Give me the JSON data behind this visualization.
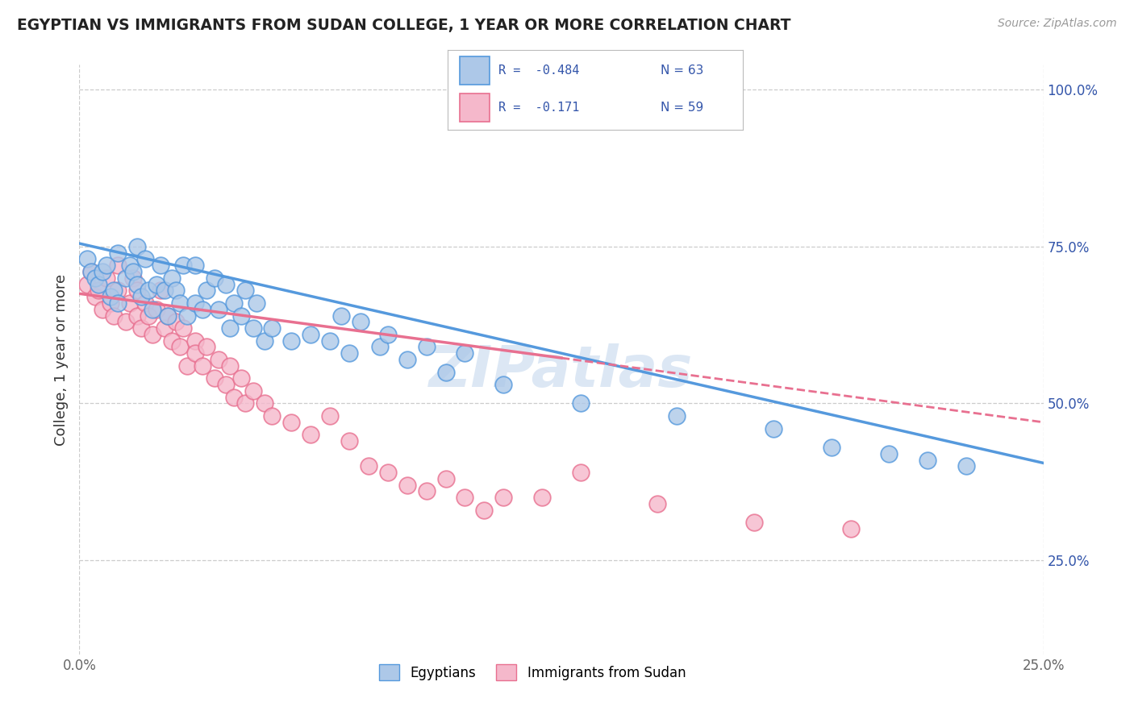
{
  "title": "EGYPTIAN VS IMMIGRANTS FROM SUDAN COLLEGE, 1 YEAR OR MORE CORRELATION CHART",
  "source_text": "Source: ZipAtlas.com",
  "ylabel": "College, 1 year or more",
  "xlim": [
    0.0,
    0.25
  ],
  "ylim": [
    0.1,
    1.04
  ],
  "x_ticks": [
    0.0,
    0.05,
    0.1,
    0.15,
    0.2,
    0.25
  ],
  "x_tick_labels": [
    "0.0%",
    "",
    "",
    "",
    "",
    "25.0%"
  ],
  "y_ticks": [
    0.25,
    0.5,
    0.75,
    1.0
  ],
  "y_tick_labels": [
    "25.0%",
    "50.0%",
    "75.0%",
    "100.0%"
  ],
  "legend_r1": "R =  -0.484",
  "legend_n1": "N = 63",
  "legend_r2": "R =  -0.171",
  "legend_n2": "N = 59",
  "color_egyptian": "#adc8e8",
  "color_sudan": "#f5b8cb",
  "color_line_egyptian": "#5599dd",
  "color_line_sudan": "#e87090",
  "color_text_blue": "#3355aa",
  "color_grid": "#cccccc",
  "color_watermark": "#c5d8ee",
  "background_color": "#ffffff",
  "eg_line_x0": 0.0,
  "eg_line_y0": 0.755,
  "eg_line_x1": 0.25,
  "eg_line_y1": 0.405,
  "su_line_x0": 0.0,
  "su_line_y0": 0.675,
  "su_line_x1": 0.25,
  "su_line_y1": 0.47,
  "su_line_solid_end": 0.125,
  "egyptians_x": [
    0.002,
    0.003,
    0.004,
    0.005,
    0.006,
    0.007,
    0.008,
    0.009,
    0.01,
    0.01,
    0.012,
    0.013,
    0.014,
    0.015,
    0.015,
    0.016,
    0.017,
    0.018,
    0.019,
    0.02,
    0.021,
    0.022,
    0.023,
    0.024,
    0.025,
    0.026,
    0.027,
    0.028,
    0.03,
    0.03,
    0.032,
    0.033,
    0.035,
    0.036,
    0.038,
    0.039,
    0.04,
    0.042,
    0.043,
    0.045,
    0.046,
    0.048,
    0.05,
    0.055,
    0.06,
    0.065,
    0.068,
    0.07,
    0.073,
    0.078,
    0.08,
    0.085,
    0.09,
    0.095,
    0.1,
    0.11,
    0.13,
    0.155,
    0.18,
    0.195,
    0.21,
    0.22,
    0.23
  ],
  "egyptians_y": [
    0.73,
    0.71,
    0.7,
    0.69,
    0.71,
    0.72,
    0.67,
    0.68,
    0.74,
    0.66,
    0.7,
    0.72,
    0.71,
    0.75,
    0.69,
    0.67,
    0.73,
    0.68,
    0.65,
    0.69,
    0.72,
    0.68,
    0.64,
    0.7,
    0.68,
    0.66,
    0.72,
    0.64,
    0.66,
    0.72,
    0.65,
    0.68,
    0.7,
    0.65,
    0.69,
    0.62,
    0.66,
    0.64,
    0.68,
    0.62,
    0.66,
    0.6,
    0.62,
    0.6,
    0.61,
    0.6,
    0.64,
    0.58,
    0.63,
    0.59,
    0.61,
    0.57,
    0.59,
    0.55,
    0.58,
    0.53,
    0.5,
    0.48,
    0.46,
    0.43,
    0.42,
    0.41,
    0.4
  ],
  "sudan_x": [
    0.002,
    0.003,
    0.004,
    0.005,
    0.006,
    0.007,
    0.008,
    0.009,
    0.01,
    0.01,
    0.012,
    0.013,
    0.014,
    0.015,
    0.015,
    0.016,
    0.017,
    0.018,
    0.019,
    0.02,
    0.021,
    0.022,
    0.023,
    0.024,
    0.025,
    0.026,
    0.027,
    0.028,
    0.03,
    0.03,
    0.032,
    0.033,
    0.035,
    0.036,
    0.038,
    0.039,
    0.04,
    0.042,
    0.043,
    0.045,
    0.048,
    0.05,
    0.055,
    0.06,
    0.065,
    0.07,
    0.075,
    0.08,
    0.085,
    0.09,
    0.095,
    0.1,
    0.105,
    0.11,
    0.12,
    0.13,
    0.15,
    0.175,
    0.2
  ],
  "sudan_y": [
    0.69,
    0.71,
    0.67,
    0.68,
    0.65,
    0.7,
    0.66,
    0.64,
    0.68,
    0.72,
    0.63,
    0.66,
    0.7,
    0.64,
    0.68,
    0.62,
    0.66,
    0.64,
    0.61,
    0.65,
    0.68,
    0.62,
    0.64,
    0.6,
    0.63,
    0.59,
    0.62,
    0.56,
    0.6,
    0.58,
    0.56,
    0.59,
    0.54,
    0.57,
    0.53,
    0.56,
    0.51,
    0.54,
    0.5,
    0.52,
    0.5,
    0.48,
    0.47,
    0.45,
    0.48,
    0.44,
    0.4,
    0.39,
    0.37,
    0.36,
    0.38,
    0.35,
    0.33,
    0.35,
    0.35,
    0.39,
    0.34,
    0.31,
    0.3
  ]
}
